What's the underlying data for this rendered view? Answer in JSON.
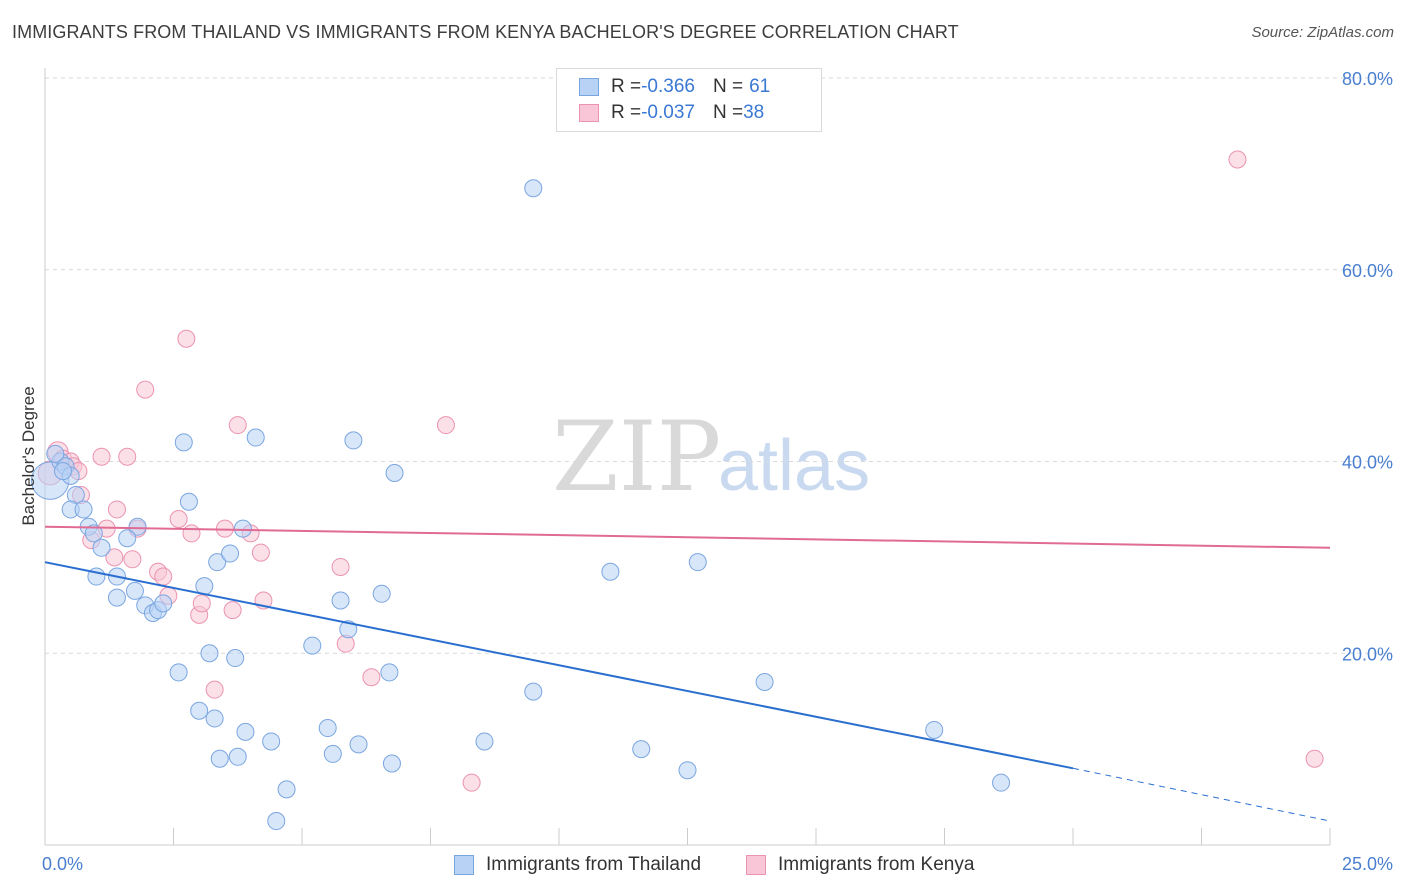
{
  "header": {
    "title": "IMMIGRANTS FROM THAILAND VS IMMIGRANTS FROM KENYA BACHELOR'S DEGREE CORRELATION CHART",
    "source": "Source: ZipAtlas.com"
  },
  "legend": {
    "thailand": {
      "r_label": "R = ",
      "r_value": "-0.366",
      "n_label": "N = ",
      "n_value": "61"
    },
    "kenya": {
      "r_label": "R = ",
      "r_value": "-0.037",
      "n_label": "N = ",
      "n_value": "38"
    }
  },
  "watermark": {
    "zip": "ZIP",
    "atlas": "atlas"
  },
  "colors": {
    "thailand_fill": "#b8d2f5",
    "thailand_stroke": "#7aa6e0",
    "thailand_line": "#2a6fd0",
    "kenya_fill": "#f8c6d6",
    "kenya_stroke": "#eb93b0",
    "kenya_line": "#e06b95",
    "grid": "#d9d9d9",
    "axis": "#cccccc"
  },
  "chart_data": {
    "type": "scatter",
    "title": "IMMIGRANTS FROM THAILAND VS IMMIGRANTS FROM KENYA BACHELOR'S DEGREE CORRELATION CHART",
    "xlabel": "",
    "ylabel": "Bachelor's Degree",
    "xlim": [
      0,
      25
    ],
    "ylim": [
      0,
      80
    ],
    "x_tick_labels": [
      "0.0%",
      "25.0%"
    ],
    "y_ticks": [
      20,
      40,
      60,
      80
    ],
    "y_tick_labels": [
      "20.0%",
      "40.0%",
      "60.0%",
      "80.0%"
    ],
    "grid": true,
    "series": [
      {
        "name": "Immigrants from Thailand",
        "r": -0.366,
        "n": 61,
        "trend": {
          "x0": 0,
          "y0": 29.5,
          "x1": 20,
          "y1": 8.0,
          "dash_to_x": 25,
          "dash_to_y": 2.5
        },
        "points": [
          [
            0.1,
            38.0,
            22
          ],
          [
            0.3,
            40.0,
            10
          ],
          [
            0.4,
            39.5,
            10
          ],
          [
            0.5,
            38.5,
            10
          ],
          [
            0.6,
            36.5,
            10
          ],
          [
            0.5,
            35.0,
            10
          ],
          [
            0.75,
            35.0,
            10
          ],
          [
            0.85,
            33.2,
            10
          ],
          [
            0.95,
            32.5,
            10
          ],
          [
            1.1,
            31.0,
            10
          ],
          [
            1.0,
            28.0,
            10
          ],
          [
            1.4,
            28.0,
            10
          ],
          [
            1.8,
            33.2,
            10
          ],
          [
            1.6,
            32.0,
            10
          ],
          [
            1.4,
            25.8,
            10
          ],
          [
            1.75,
            26.5,
            10
          ],
          [
            1.95,
            25.0,
            10
          ],
          [
            2.1,
            24.2,
            10
          ],
          [
            2.2,
            24.5,
            10
          ],
          [
            2.3,
            25.2,
            10
          ],
          [
            2.6,
            18.0,
            10
          ],
          [
            2.7,
            42.0,
            10
          ],
          [
            2.8,
            35.8,
            10
          ],
          [
            3.0,
            14.0,
            10
          ],
          [
            3.1,
            27.0,
            10
          ],
          [
            3.2,
            20.0,
            10
          ],
          [
            3.3,
            13.2,
            10
          ],
          [
            3.35,
            29.5,
            10
          ],
          [
            3.6,
            30.4,
            10
          ],
          [
            3.7,
            19.5,
            10
          ],
          [
            3.4,
            9.0,
            10
          ],
          [
            3.75,
            9.2,
            10
          ],
          [
            3.9,
            11.8,
            10
          ],
          [
            3.85,
            33.0,
            10
          ],
          [
            4.1,
            42.5,
            10
          ],
          [
            4.4,
            10.8,
            10
          ],
          [
            4.7,
            5.8,
            10
          ],
          [
            4.5,
            2.5,
            10
          ],
          [
            5.2,
            20.8,
            10
          ],
          [
            5.5,
            12.2,
            10
          ],
          [
            5.6,
            9.5,
            10
          ],
          [
            5.75,
            25.5,
            10
          ],
          [
            5.9,
            22.5,
            10
          ],
          [
            6.0,
            42.2,
            10
          ],
          [
            6.1,
            10.5,
            10
          ],
          [
            6.55,
            26.2,
            10
          ],
          [
            6.7,
            18.0,
            10
          ],
          [
            6.75,
            8.5,
            10
          ],
          [
            6.8,
            38.8,
            10
          ],
          [
            8.55,
            10.8,
            10
          ],
          [
            9.5,
            16.0,
            10
          ],
          [
            9.5,
            68.5,
            10
          ],
          [
            11.0,
            28.5,
            10
          ],
          [
            11.6,
            10.0,
            10
          ],
          [
            12.5,
            7.8,
            10
          ],
          [
            12.7,
            29.5,
            10
          ],
          [
            14.0,
            17.0,
            10
          ],
          [
            17.3,
            12.0,
            10
          ],
          [
            18.6,
            6.5,
            10
          ],
          [
            0.2,
            40.8,
            10
          ],
          [
            0.35,
            39.0,
            10
          ]
        ]
      },
      {
        "name": "Immigrants from Kenya",
        "r": -0.037,
        "n": 38,
        "trend": {
          "x0": 0,
          "y0": 33.2,
          "x1": 25,
          "y1": 31.0
        },
        "points": [
          [
            0.1,
            38.8,
            14
          ],
          [
            0.25,
            41.0,
            12
          ],
          [
            0.35,
            40.3,
            10
          ],
          [
            0.5,
            40.0,
            10
          ],
          [
            0.55,
            39.5,
            10
          ],
          [
            0.7,
            36.5,
            10
          ],
          [
            0.65,
            39.0,
            10
          ],
          [
            0.9,
            31.8,
            10
          ],
          [
            1.1,
            40.5,
            10
          ],
          [
            1.2,
            33.0,
            10
          ],
          [
            1.35,
            30.0,
            10
          ],
          [
            1.4,
            35.0,
            10
          ],
          [
            1.6,
            40.5,
            10
          ],
          [
            1.7,
            29.8,
            10
          ],
          [
            1.8,
            33.0,
            10
          ],
          [
            1.95,
            47.5,
            10
          ],
          [
            2.2,
            28.5,
            10
          ],
          [
            2.3,
            28.0,
            10
          ],
          [
            2.4,
            26.0,
            10
          ],
          [
            2.6,
            34.0,
            10
          ],
          [
            2.75,
            52.8,
            10
          ],
          [
            2.85,
            32.5,
            10
          ],
          [
            3.0,
            24.0,
            10
          ],
          [
            3.05,
            25.2,
            10
          ],
          [
            3.3,
            16.2,
            10
          ],
          [
            3.5,
            33.0,
            10
          ],
          [
            3.65,
            24.5,
            10
          ],
          [
            3.75,
            43.8,
            10
          ],
          [
            4.0,
            32.5,
            10
          ],
          [
            4.2,
            30.5,
            10
          ],
          [
            4.25,
            25.5,
            10
          ],
          [
            5.75,
            29.0,
            10
          ],
          [
            5.85,
            21.0,
            10
          ],
          [
            6.35,
            17.5,
            10
          ],
          [
            7.8,
            43.8,
            10
          ],
          [
            8.3,
            6.5,
            10
          ],
          [
            23.2,
            71.5,
            10
          ],
          [
            24.7,
            9.0,
            10
          ]
        ]
      }
    ]
  }
}
